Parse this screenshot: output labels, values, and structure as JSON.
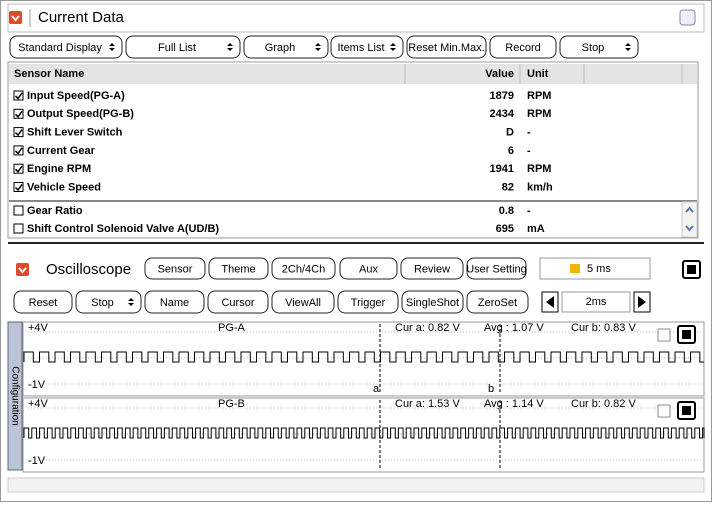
{
  "current_data": {
    "title": "Current Data",
    "toolbar": [
      {
        "label": "Standard Display",
        "dropdown": true
      },
      {
        "label": "Full List",
        "dropdown": true
      },
      {
        "label": "Graph",
        "dropdown": true
      },
      {
        "label": "Items List",
        "dropdown": true
      },
      {
        "label": "Reset Min.Max.",
        "dropdown": false
      },
      {
        "label": "Record",
        "dropdown": false
      },
      {
        "label": "Stop",
        "dropdown": true
      }
    ],
    "columns": [
      "Sensor Name",
      "Value",
      "Unit"
    ],
    "rows": [
      {
        "name": "Input Speed(PG-A)",
        "value": 1879,
        "unit": "RPM",
        "checked": true
      },
      {
        "name": "Output Speed(PG-B)",
        "value": 2434,
        "unit": "RPM",
        "checked": true
      },
      {
        "name": "Shift Lever Switch",
        "value": "D",
        "unit": "-",
        "checked": true
      },
      {
        "name": "Current Gear",
        "value": 6,
        "unit": "-",
        "checked": true
      },
      {
        "name": "Engine RPM",
        "value": 1941,
        "unit": "RPM",
        "checked": true
      },
      {
        "name": "Vehicle Speed",
        "value": 82,
        "unit": "km/h",
        "checked": true
      },
      {
        "name": "Gear Ratio",
        "value": 0.8,
        "unit": "-",
        "checked": false
      },
      {
        "name": "Shift Control Solenoid Valve A(UD/B)",
        "value": 695,
        "unit": "mA",
        "checked": false
      }
    ]
  },
  "oscilloscope": {
    "title": "Oscilloscope",
    "toolbar": [
      "Sensor",
      "Theme",
      "2Ch/4Ch",
      "Aux",
      "Review",
      "User Setting"
    ],
    "time_div": "5 ms",
    "toolbar2": [
      {
        "label": "Reset",
        "dropdown": false
      },
      {
        "label": "Stop",
        "dropdown": true
      },
      {
        "label": "Name",
        "dropdown": false
      },
      {
        "label": "Cursor",
        "dropdown": false
      },
      {
        "label": "ViewAll",
        "dropdown": false
      },
      {
        "label": "Trigger",
        "dropdown": false
      },
      {
        "label": "SingleShot",
        "dropdown": false
      },
      {
        "label": "ZeroSet",
        "dropdown": false
      }
    ],
    "zoom": "2ms",
    "side_tab": "Configuration",
    "cursor_labels": [
      "a",
      "b"
    ],
    "channels": [
      {
        "max": "+4V",
        "min": "-1V",
        "name": "PG-A",
        "cur_a": "Cur a: 0.82 V",
        "avg": "Avg : 1.07 V",
        "cur_b": "Cur b: 0.83 V"
      },
      {
        "max": "+4V",
        "min": "-1V",
        "name": "PG-B",
        "cur_a": "Cur a: 1.53 V",
        "avg": "Avg : 1.14 V",
        "cur_b": "Cur b: 0.82 V"
      }
    ]
  }
}
